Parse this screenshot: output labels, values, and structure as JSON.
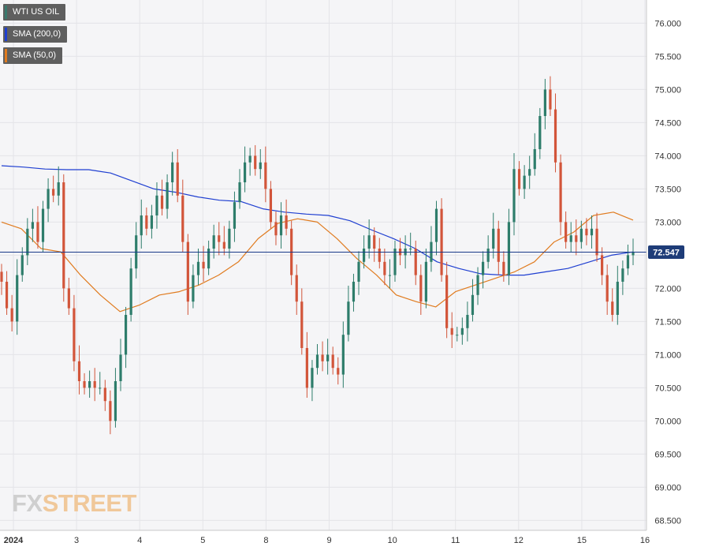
{
  "legend": {
    "instrument": "WTI US OIL",
    "sma200": "SMA (200,0)",
    "sma50": "SMA (50,0)"
  },
  "colors": {
    "instrument": "#3a7a6e",
    "sma200": "#1f3fd1",
    "sma50": "#e07b1f",
    "up_candle": "#2e7d6b",
    "down_candle": "#d2553a",
    "price_line": "#1a3a8a",
    "price_badge": "#1e3c78"
  },
  "watermark": {
    "part1": "FX",
    "part2": "STREET"
  },
  "price_badge": {
    "value": "72.547"
  },
  "chart_data": {
    "type": "candlestick",
    "title": "",
    "xlabel": "",
    "ylabel": "",
    "ylim": [
      68.35,
      76.35
    ],
    "y_ticks": [
      "76.000",
      "75.500",
      "75.000",
      "74.500",
      "74.000",
      "73.500",
      "73.000",
      "72.500",
      "72.000",
      "71.500",
      "71.000",
      "70.500",
      "70.000",
      "69.500",
      "69.000",
      "68.500"
    ],
    "x_ticks": [
      "2024",
      "3",
      "4",
      "5",
      "8",
      "9",
      "10",
      "11",
      "12",
      "15",
      "16"
    ],
    "grid": true,
    "current_price": 72.547,
    "close_series": [
      72.1,
      71.7,
      71.5,
      72.2,
      72.5,
      72.9,
      73.0,
      72.7,
      73.2,
      73.5,
      73.4,
      73.6,
      72.0,
      71.7,
      70.9,
      70.6,
      70.5,
      70.6,
      70.5,
      70.5,
      70.3,
      70.0,
      70.6,
      71.0,
      71.6,
      72.3,
      72.8,
      73.1,
      72.9,
      73.1,
      73.4,
      73.2,
      73.6,
      73.9,
      73.4,
      72.7,
      71.8,
      72.2,
      72.4,
      72.3,
      72.6,
      72.8,
      72.7,
      72.6,
      72.9,
      73.3,
      73.6,
      73.9,
      74.0,
      73.8,
      73.9,
      73.5,
      73.0,
      72.8,
      73.1,
      72.9,
      72.2,
      71.8,
      71.1,
      70.5,
      70.8,
      71.0,
      70.9,
      71.0,
      70.8,
      70.7,
      71.3,
      71.8,
      72.1,
      72.4,
      72.6,
      72.8,
      72.6,
      72.4,
      72.2,
      72.2,
      72.6,
      72.5,
      72.6,
      72.6,
      72.2,
      71.8,
      72.4,
      72.7,
      73.2,
      72.2,
      71.4,
      71.3,
      71.3,
      71.4,
      71.6,
      71.9,
      72.2,
      72.4,
      72.6,
      72.9,
      72.4,
      72.2,
      73.0,
      73.8,
      73.5,
      73.7,
      73.8,
      74.1,
      74.6,
      75.0,
      74.7,
      73.9,
      73.0,
      72.7,
      72.8,
      72.7,
      72.9,
      72.8,
      72.9,
      72.5,
      72.2,
      71.8,
      71.6,
      72.1,
      72.3,
      72.5,
      72.55
    ],
    "series": [
      {
        "name": "SMA (200,0)",
        "values": [
          73.85,
          73.83,
          73.8,
          73.79,
          73.79,
          73.74,
          73.62,
          73.5,
          73.45,
          73.38,
          73.33,
          73.31,
          73.2,
          73.15,
          73.12,
          73.1,
          73.02,
          72.88,
          72.75,
          72.6,
          72.4,
          72.3,
          72.22,
          72.2,
          72.2,
          72.25,
          72.3,
          72.4,
          72.5,
          72.55
        ]
      },
      {
        "name": "SMA (50,0)",
        "values": [
          73.0,
          72.9,
          72.6,
          72.55,
          72.2,
          71.9,
          71.65,
          71.75,
          71.9,
          71.95,
          72.05,
          72.2,
          72.4,
          72.75,
          72.98,
          73.05,
          73.0,
          72.75,
          72.45,
          72.2,
          71.9,
          71.8,
          71.72,
          71.95,
          72.05,
          72.15,
          72.25,
          72.4,
          72.7,
          72.85,
          73.1,
          73.15,
          73.03
        ]
      }
    ]
  }
}
